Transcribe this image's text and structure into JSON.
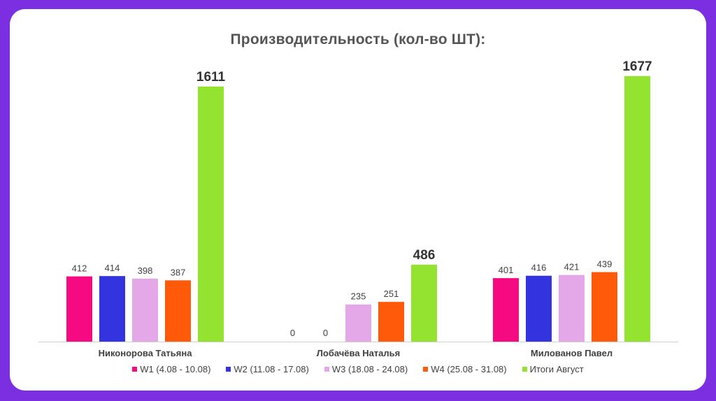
{
  "chart_data": {
    "type": "bar",
    "title": "Производительность (кол-во ШТ):",
    "categories": [
      "Никонорова Татьяна",
      "Лобачёва Наталья",
      "Милованов Павел"
    ],
    "series": [
      {
        "name": "W1 (4.08 - 10.08)",
        "color": "#f50a82",
        "values": [
          412,
          0,
          401
        ]
      },
      {
        "name": "W2 (11.08 - 17.08)",
        "color": "#3333e0",
        "values": [
          414,
          0,
          416
        ]
      },
      {
        "name": "W3 (18.08 - 24.08)",
        "color": "#e4a8e8",
        "values": [
          398,
          235,
          421
        ]
      },
      {
        "name": "W4 (25.08 - 31.08)",
        "color": "#ff5a0a",
        "values": [
          387,
          251,
          439
        ]
      },
      {
        "name": "Итоги Август",
        "color": "#93e330",
        "values": [
          1611,
          486,
          1677
        ]
      }
    ],
    "ylim": [
      0,
      1800
    ],
    "grid": false,
    "legend_position": "bottom"
  }
}
